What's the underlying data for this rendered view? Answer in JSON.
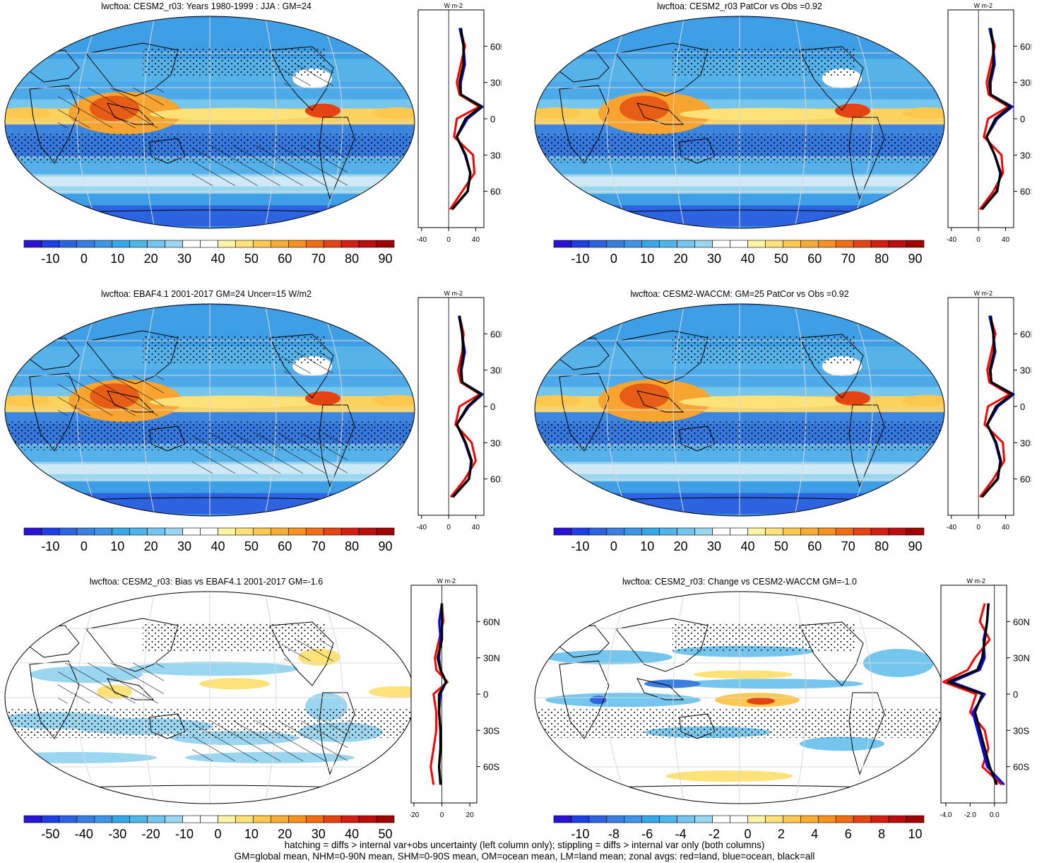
{
  "panels": [
    {
      "title": "lwcftoa: CESM2_r03: Years 1980-1999 : JJA : GM=24",
      "cb": "full",
      "cb_labels": [
        "-10",
        "0",
        "10",
        "20",
        "30",
        "40",
        "50",
        "60",
        "70",
        "80",
        "90"
      ],
      "zx_labels": [
        "-40",
        "0",
        "40"
      ],
      "zx_range": [
        -45,
        52
      ],
      "units": "W m-2",
      "pattern": "mean",
      "hatch": true
    },
    {
      "title": "lwcftoa: CESM2_r03 PatCor vs Obs =0.92",
      "cb": "full",
      "cb_labels": [
        "-10",
        "0",
        "10",
        "20",
        "30",
        "40",
        "50",
        "60",
        "70",
        "80",
        "90"
      ],
      "zx_labels": [
        "-40",
        "0",
        "40"
      ],
      "zx_range": [
        -45,
        52
      ],
      "units": "W m-2",
      "pattern": "mean",
      "hatch": false
    },
    {
      "title": "lwcftoa: EBAF4.1 2001-2017 GM=24 Uncer=15 W/m2",
      "cb": "full",
      "cb_labels": [
        "-10",
        "0",
        "10",
        "20",
        "30",
        "40",
        "50",
        "60",
        "70",
        "80",
        "90"
      ],
      "zx_labels": [
        "-40",
        "0",
        "40"
      ],
      "zx_range": [
        -45,
        52
      ],
      "units": "W m-2",
      "pattern": "mean",
      "hatch": true
    },
    {
      "title": "lwcftoa: CESM2-WACCM: GM=25 PatCor vs Obs =0.92",
      "cb": "full",
      "cb_labels": [
        "-10",
        "0",
        "10",
        "20",
        "30",
        "40",
        "50",
        "60",
        "70",
        "80",
        "90"
      ],
      "zx_labels": [
        "-40",
        "0",
        "40"
      ],
      "zx_range": [
        -45,
        52
      ],
      "units": "W m-2",
      "pattern": "mean",
      "hatch": false
    },
    {
      "title": "lwcftoa: CESM2_r03: Bias vs EBAF4.1 2001-2017 GM=-1.6",
      "cb": "div",
      "cb_labels": [
        "-50",
        "-40",
        "-30",
        "-20",
        "-10",
        "0",
        "10",
        "20",
        "30",
        "40",
        "50"
      ],
      "zx_labels": [
        "-20",
        "0",
        "20"
      ],
      "zx_range": [
        -22,
        25
      ],
      "units": "W m-2",
      "pattern": "bias",
      "hatch": true
    },
    {
      "title": "lwcftoa: CESM2_r03: Change vs CESM2-WACCM GM=-1.0",
      "cb": "div",
      "cb_labels": [
        "-10",
        "-8",
        "-6",
        "-4",
        "-2",
        "0",
        "2",
        "4",
        "6",
        "8",
        "10"
      ],
      "zx_labels": [
        "-4.0",
        "-2.0",
        "0.0"
      ],
      "zx_range": [
        -4.4,
        1.0
      ],
      "units": "W m-2",
      "pattern": "change",
      "hatch": false
    }
  ],
  "lat_labels": [
    "60N",
    "30N",
    "0",
    "30S",
    "60S"
  ],
  "footer": {
    "line1": "hatching = diffs > internal var+obs uncertainty (left column only); stippling = diffs > internal var only (both columns)",
    "line2": "GM=global mean, NHM=0-90N mean, SHM=0-90S mean, OM=ocean mean, LM=land mean; zonal avgs: red=land, blue=ocean, black=all"
  },
  "colors": {
    "full_scale": [
      "#2a12d6",
      "#1f3fe6",
      "#2c63e0",
      "#3a7fe0",
      "#3e95e6",
      "#35a8ea",
      "#4fb6ec",
      "#74c6ee",
      "#9bd6f0",
      "#ffffff",
      "#ffffff",
      "#fff3a6",
      "#fde27a",
      "#fcc84f",
      "#f9ad34",
      "#f7921e",
      "#f06d16",
      "#e64312",
      "#d41e10",
      "#bd0d0d",
      "#a00000"
    ],
    "land": "#ff0000",
    "ocean": "#0000ff",
    "all": "#000000"
  },
  "chart_data": [
    {
      "type": "heatmap",
      "title": "lwcftoa: CESM2_r03: Years 1980-1999 : JJA : GM=24",
      "colorbar_ticks": [
        -10,
        0,
        10,
        20,
        30,
        40,
        50,
        60,
        70,
        80,
        90
      ],
      "zonal_mean": {
        "lat": [
          -75,
          -60,
          -45,
          -30,
          -15,
          0,
          10,
          20,
          30,
          45,
          60,
          75
        ],
        "all": [
          5,
          28,
          32,
          25,
          12,
          25,
          48,
          18,
          16,
          22,
          22,
          18
        ],
        "land": [
          2,
          20,
          38,
          36,
          8,
          12,
          45,
          16,
          12,
          18,
          24,
          17
        ],
        "ocean": [
          5,
          28,
          32,
          24,
          12,
          28,
          50,
          18,
          18,
          24,
          22,
          16
        ]
      },
      "xlim": [
        -45,
        52
      ]
    },
    {
      "type": "heatmap",
      "title": "lwcftoa: CESM2_r03 PatCor vs Obs =0.92",
      "colorbar_ticks": [
        -10,
        0,
        10,
        20,
        30,
        40,
        50,
        60,
        70,
        80,
        90
      ],
      "zonal_mean": {
        "lat": [
          -75,
          -60,
          -45,
          -30,
          -15,
          0,
          10,
          20,
          30,
          45,
          60,
          75
        ],
        "all": [
          5,
          27,
          33,
          24,
          12,
          25,
          47,
          18,
          16,
          22,
          22,
          18
        ],
        "land": [
          2,
          22,
          36,
          34,
          8,
          14,
          44,
          15,
          12,
          18,
          24,
          17
        ],
        "ocean": [
          5,
          28,
          32,
          24,
          12,
          28,
          50,
          18,
          18,
          24,
          22,
          16
        ]
      },
      "xlim": [
        -45,
        52
      ]
    },
    {
      "type": "heatmap",
      "title": "lwcftoa: EBAF4.1 2001-2017 GM=24 Uncer=15 W/m2",
      "colorbar_ticks": [
        -10,
        0,
        10,
        20,
        30,
        40,
        50,
        60,
        70,
        80,
        90
      ],
      "zonal_mean": {
        "lat": [
          -75,
          -60,
          -45,
          -30,
          -15,
          0,
          10,
          20,
          30,
          45,
          60,
          75
        ],
        "all": [
          6,
          30,
          34,
          25,
          12,
          28,
          48,
          20,
          18,
          22,
          20,
          16
        ],
        "land": [
          3,
          24,
          40,
          34,
          10,
          16,
          46,
          18,
          14,
          20,
          22,
          16
        ],
        "ocean": [
          6,
          30,
          33,
          24,
          12,
          30,
          50,
          20,
          19,
          24,
          20,
          15
        ]
      },
      "xlim": [
        -45,
        52
      ]
    },
    {
      "type": "heatmap",
      "title": "lwcftoa: CESM2-WACCM: GM=25 PatCor vs Obs =0.92",
      "colorbar_ticks": [
        -10,
        0,
        10,
        20,
        30,
        40,
        50,
        60,
        70,
        80,
        90
      ],
      "zonal_mean": {
        "lat": [
          -75,
          -60,
          -45,
          -30,
          -15,
          0,
          10,
          20,
          30,
          45,
          60,
          75
        ],
        "all": [
          5,
          28,
          33,
          26,
          13,
          26,
          50,
          19,
          17,
          23,
          22,
          18
        ],
        "land": [
          2,
          22,
          38,
          36,
          9,
          14,
          46,
          16,
          13,
          19,
          25,
          17
        ],
        "ocean": [
          5,
          29,
          32,
          25,
          13,
          29,
          52,
          19,
          18,
          25,
          22,
          16
        ]
      },
      "xlim": [
        -45,
        52
      ]
    },
    {
      "type": "heatmap",
      "title": "lwcftoa: CESM2_r03: Bias vs EBAF4.1 2001-2017 GM=-1.6",
      "colorbar_ticks": [
        -50,
        -40,
        -30,
        -20,
        -10,
        0,
        10,
        20,
        30,
        40,
        50
      ],
      "zonal_mean": {
        "lat": [
          -75,
          -60,
          -45,
          -30,
          -15,
          0,
          10,
          20,
          30,
          45,
          60,
          75
        ],
        "all": [
          -1,
          -2,
          -1,
          -1,
          -2,
          -2,
          3,
          -1,
          -3,
          0,
          0,
          0
        ],
        "land": [
          -6,
          -8,
          -6,
          -4,
          -4,
          -6,
          4,
          -4,
          -5,
          -2,
          1,
          0
        ],
        "ocean": [
          -1,
          -2,
          -1,
          -1,
          -2,
          -1,
          3,
          -1,
          -2,
          -1,
          -2,
          0
        ]
      },
      "xlim": [
        -22,
        25
      ]
    },
    {
      "type": "heatmap",
      "title": "lwcftoa: CESM2_r03: Change vs CESM2-WACCM GM=-1.0",
      "colorbar_ticks": [
        -10,
        -8,
        -6,
        -4,
        -2,
        0,
        2,
        4,
        6,
        8,
        10
      ],
      "zonal_mean": {
        "lat": [
          -75,
          -60,
          -45,
          -30,
          -15,
          0,
          10,
          20,
          30,
          45,
          60,
          75
        ],
        "all": [
          0.2,
          -0.4,
          -0.8,
          -1.2,
          -1.6,
          -1.0,
          -3.8,
          -1.4,
          -1.0,
          -0.8,
          -0.6,
          -0.5
        ],
        "land": [
          0.6,
          -1.0,
          -0.5,
          -0.8,
          -2.0,
          -1.5,
          -4.2,
          -2.2,
          -1.6,
          -0.4,
          -1.2,
          -0.8
        ],
        "ocean": [
          0.8,
          -0.6,
          -1.0,
          -1.4,
          -1.8,
          -0.8,
          -3.5,
          -1.2,
          -0.8,
          -0.9,
          -0.6,
          -0.5
        ]
      },
      "xlim": [
        -4.4,
        1.0
      ]
    }
  ]
}
